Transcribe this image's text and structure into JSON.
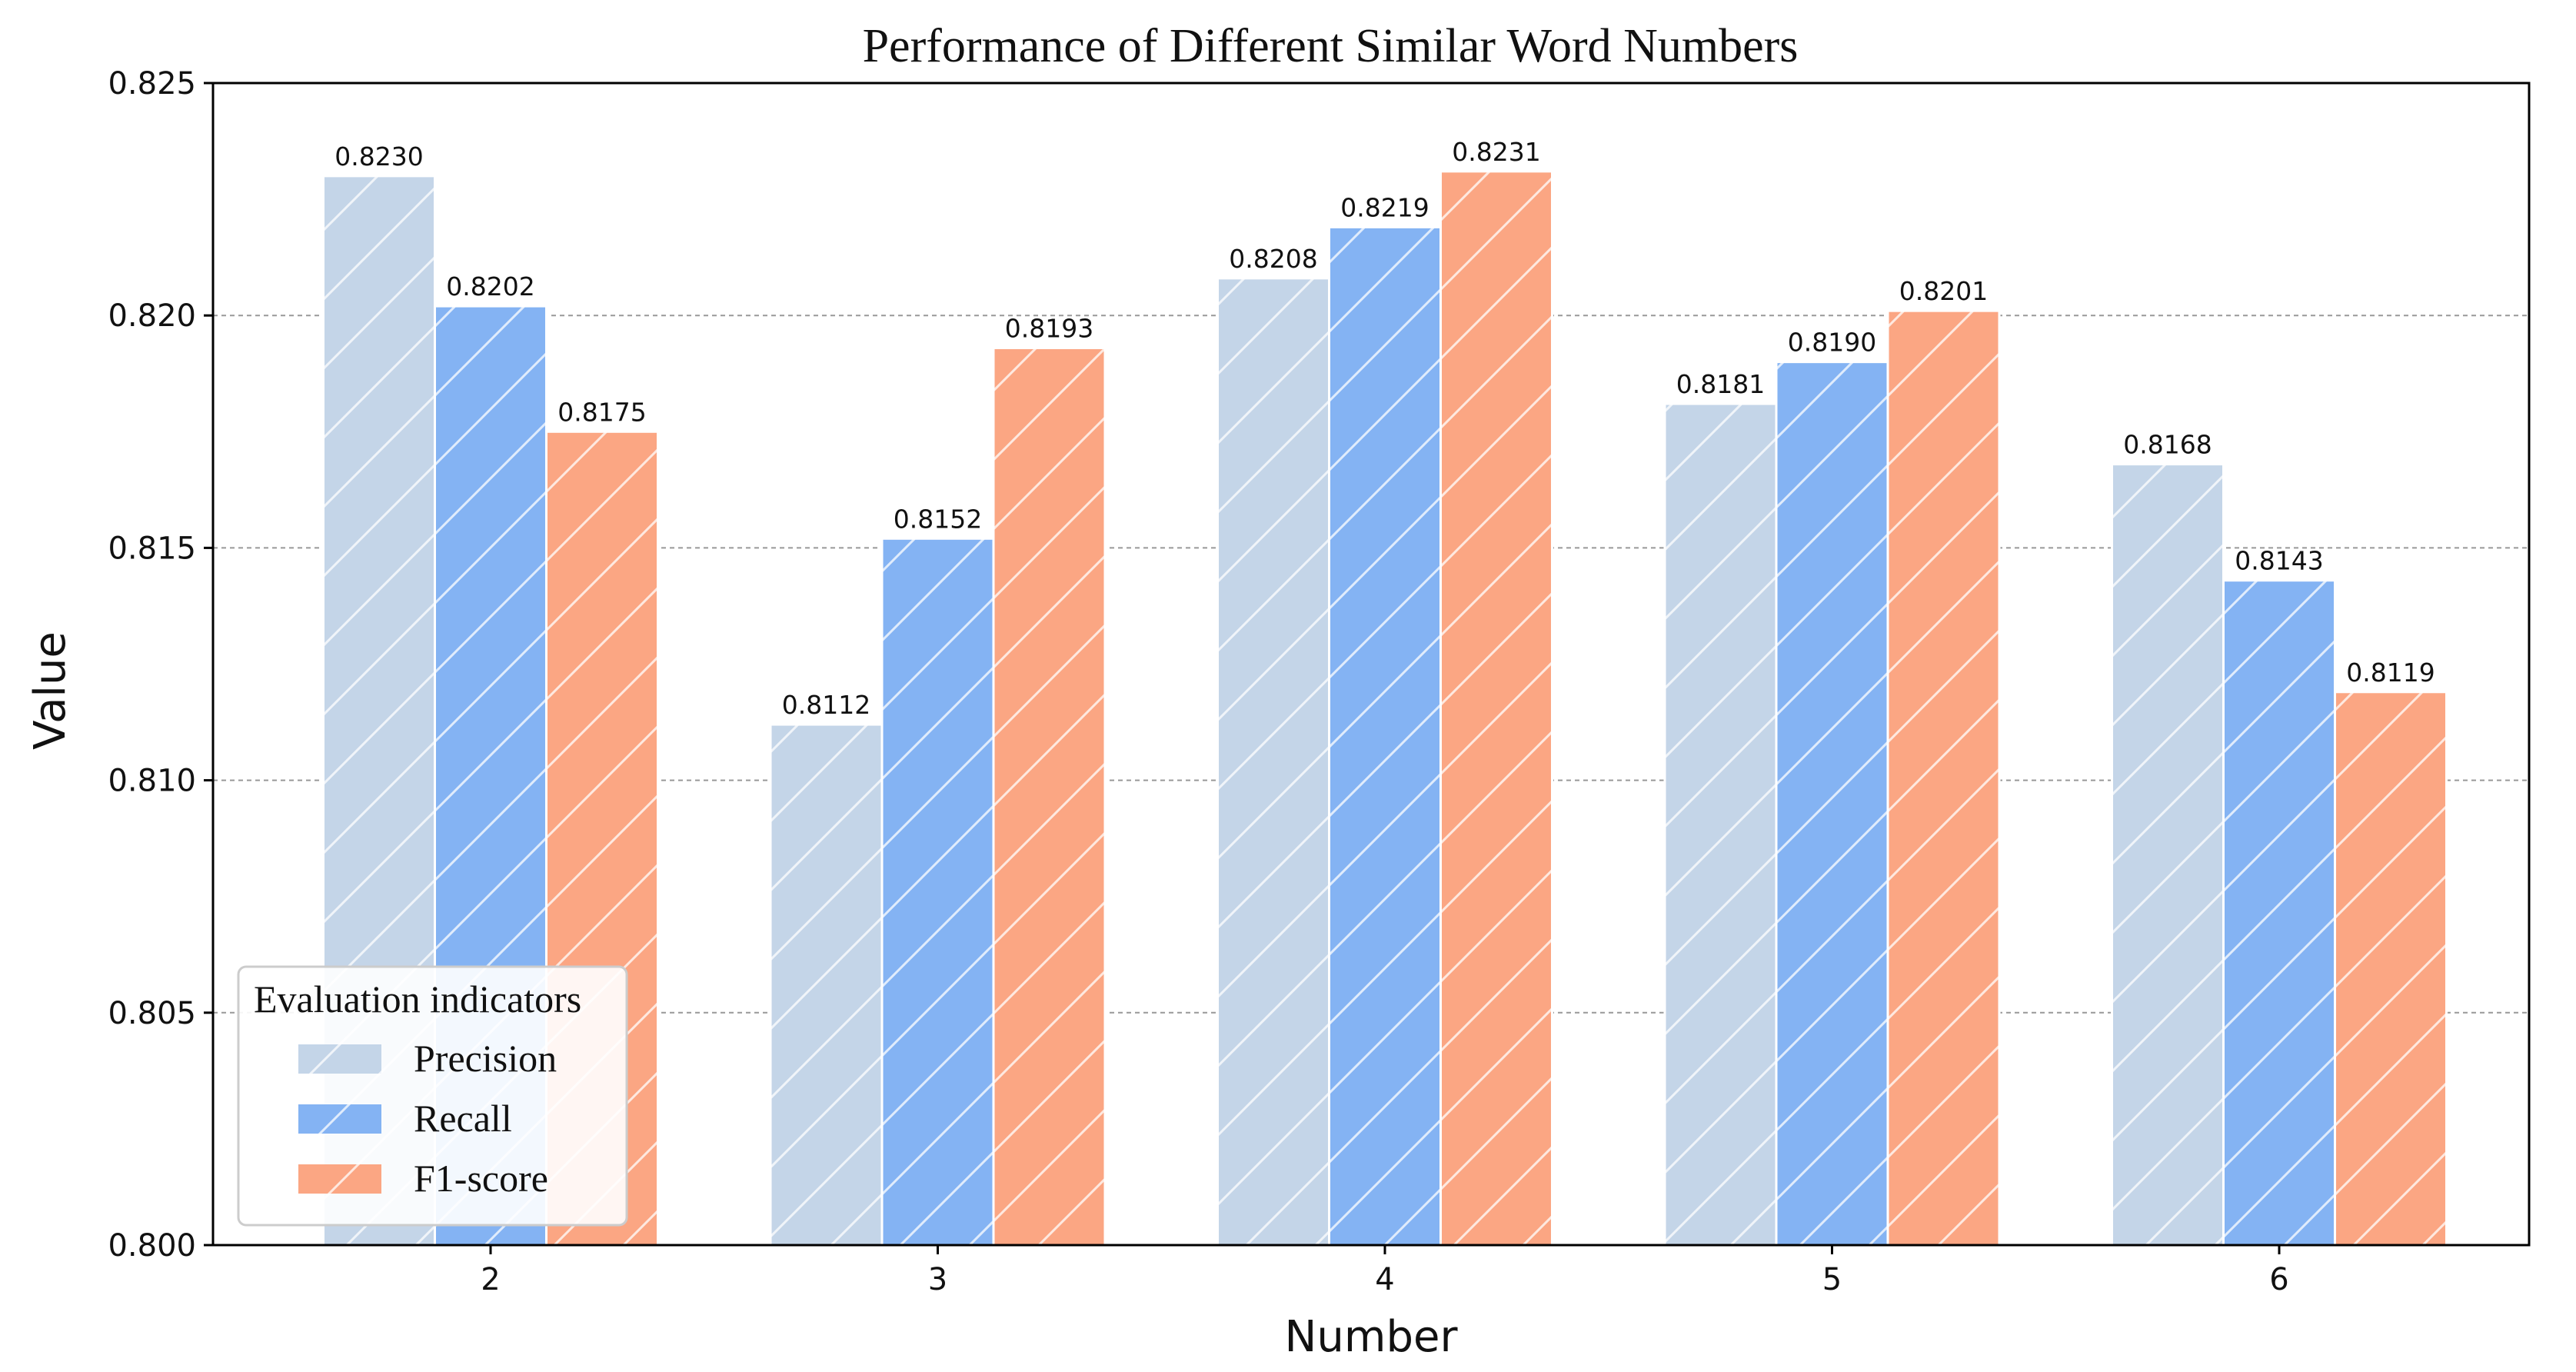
{
  "chart_data": {
    "type": "bar",
    "title": "Performance of Different Similar Word Numbers",
    "xlabel": "Number",
    "ylabel": "Value",
    "categories": [
      "2",
      "3",
      "4",
      "5",
      "6"
    ],
    "ylim": [
      0.8,
      0.825
    ],
    "yticks": [
      "0.800",
      "0.805",
      "0.810",
      "0.815",
      "0.820",
      "0.825"
    ],
    "grid": "horizontal dashed",
    "legend": {
      "title": "Evaluation indicators",
      "position": "lower-left"
    },
    "series": [
      {
        "name": "Precision",
        "color": "#c4d5e8",
        "values": [
          0.823,
          0.8112,
          0.8208,
          0.8181,
          0.8168
        ],
        "labels": [
          "0.8230",
          "0.8112",
          "0.8208",
          "0.8181",
          "0.8168"
        ]
      },
      {
        "name": "Recall",
        "color": "#84b3f3",
        "values": [
          0.8202,
          0.8152,
          0.8219,
          0.819,
          0.8143
        ],
        "labels": [
          "0.8202",
          "0.8152",
          "0.8219",
          "0.8190",
          "0.8143"
        ]
      },
      {
        "name": "F1-score",
        "color": "#fba683",
        "values": [
          0.8175,
          0.8193,
          0.8231,
          0.8201,
          0.8119
        ],
        "labels": [
          "0.8175",
          "0.8193",
          "0.8231",
          "0.8201",
          "0.8119"
        ]
      }
    ]
  }
}
